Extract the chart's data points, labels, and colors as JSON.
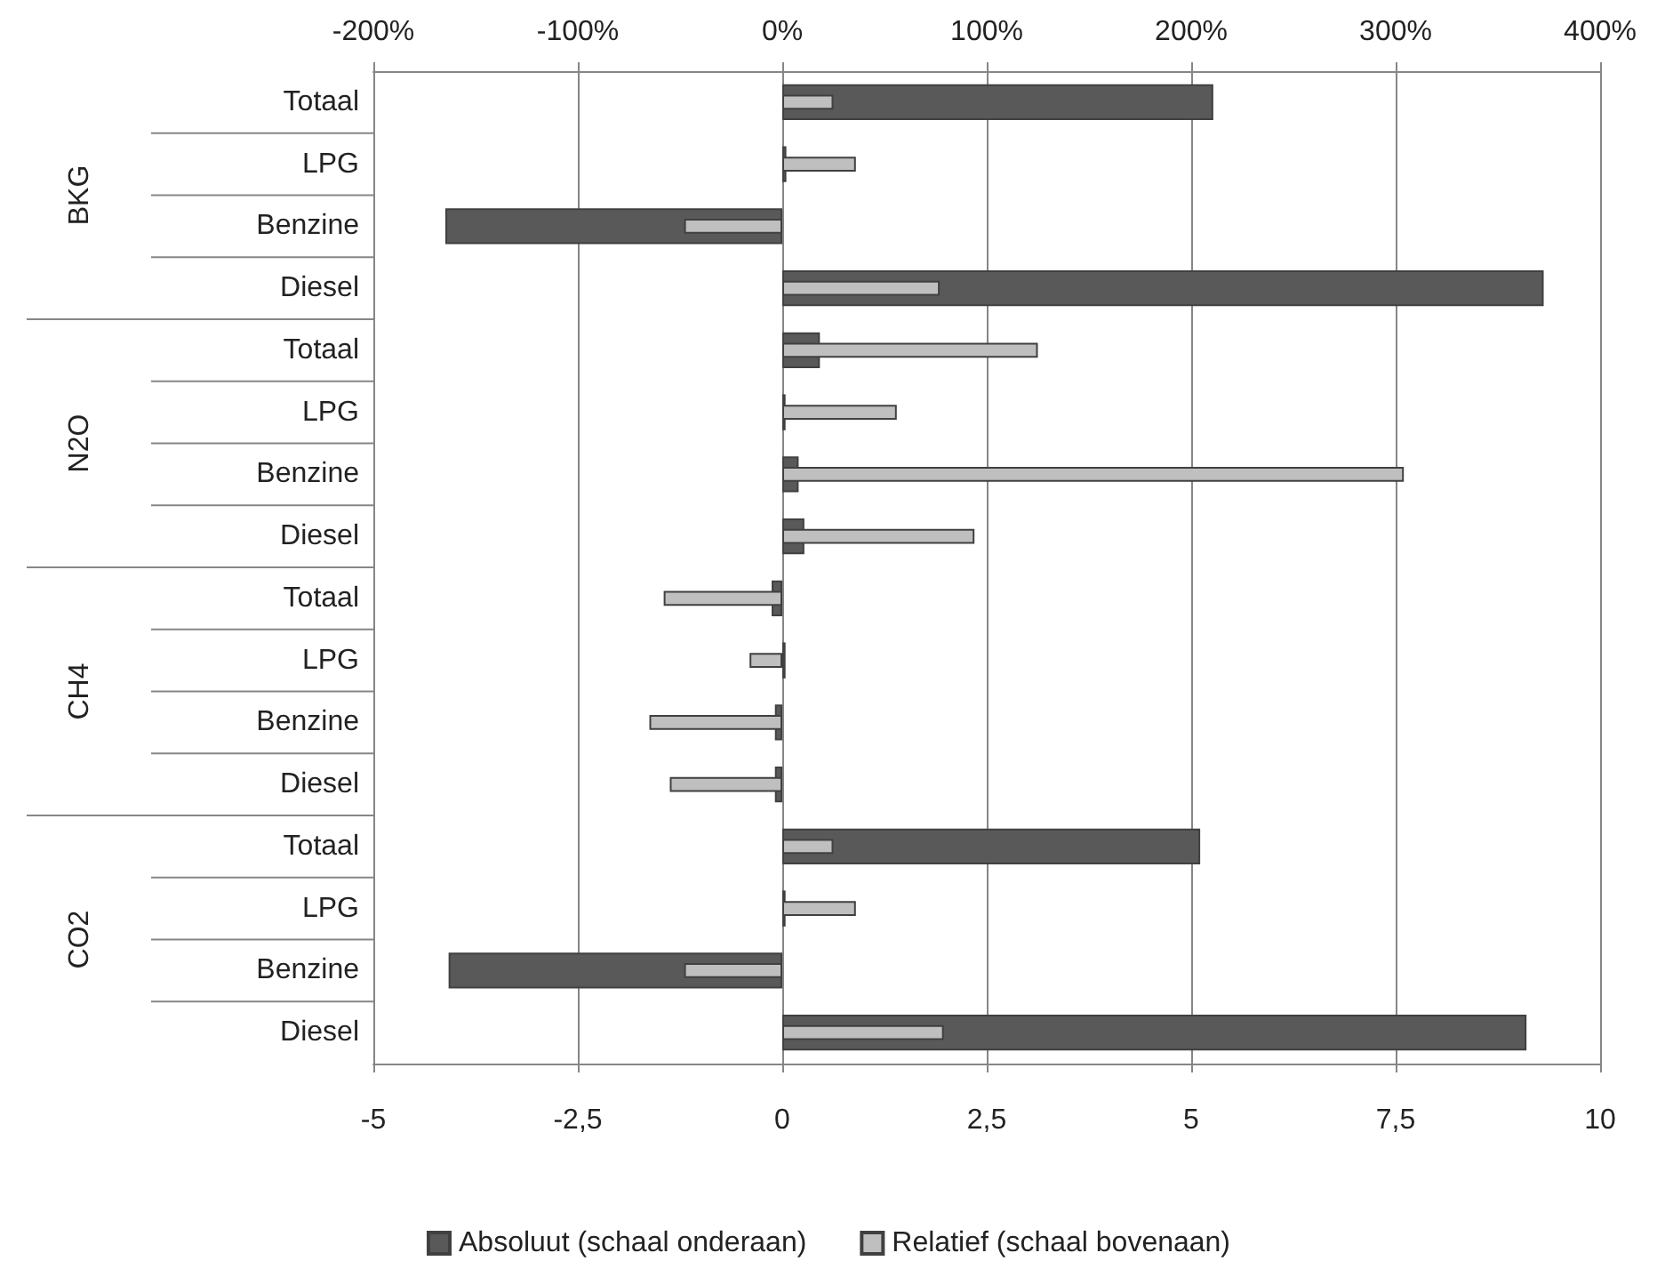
{
  "chart_data": {
    "type": "bar",
    "orientation": "horizontal",
    "categories": [
      "Totaal",
      "LPG",
      "Benzine",
      "Diesel",
      "Totaal",
      "LPG",
      "Benzine",
      "Diesel",
      "Totaal",
      "LPG",
      "Benzine",
      "Diesel",
      "Totaal",
      "LPG",
      "Benzine",
      "Diesel"
    ],
    "annotations": [
      "BKG",
      "N2O",
      "CH4",
      "CO2"
    ],
    "series": [
      {
        "name": "Absoluut (schaal onderaan)",
        "color": "#595959",
        "values": [
          5.27,
          0.05,
          -4.12,
          9.31,
          0.46,
          0.04,
          0.2,
          0.27,
          -0.13,
          0.04,
          -0.09,
          -0.09,
          5.11,
          0.04,
          -4.08,
          9.1
        ]
      },
      {
        "name": "Relatief (schaal bovenaan)",
        "color": "#bfbfbf",
        "axis": "x2",
        "values": [
          25,
          36,
          -48,
          77,
          125,
          56,
          304,
          94,
          -58,
          -16,
          -65,
          -55,
          25,
          36,
          -48,
          79
        ]
      }
    ],
    "xlim": [
      -5,
      10
    ],
    "xticks": [
      -5,
      {
        "value": -2.5,
        "label": "-2,5"
      },
      0,
      {
        "value": 2.5,
        "label": "2,5"
      },
      5,
      {
        "value": 7.5,
        "label": "7,5"
      },
      10
    ],
    "x2lim": [
      -200,
      400
    ],
    "x2ticks": [
      {
        "value": -200,
        "label": "-200%"
      },
      {
        "value": -100,
        "label": "-100%"
      },
      {
        "value": 0,
        "label": "0%"
      },
      {
        "value": 100,
        "label": "100%"
      },
      {
        "value": 200,
        "label": "200%"
      },
      {
        "value": 300,
        "label": "300%"
      },
      {
        "value": 400,
        "label": "400%"
      }
    ],
    "grid": "x",
    "legend": "bottom"
  }
}
